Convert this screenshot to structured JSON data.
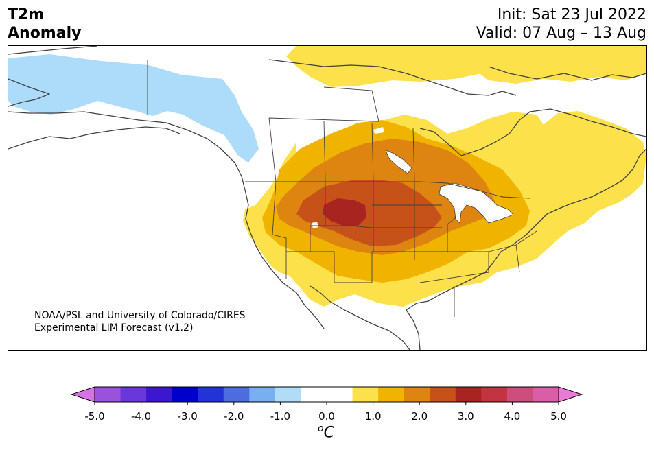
{
  "header": {
    "variable": "T2m",
    "variable_sub": "Anomaly",
    "init": "Init: Sat 23 Jul 2022",
    "valid": "Valid: 07 Aug – 13 Aug"
  },
  "credit": {
    "line1": "NOAA/PSL and University of Colorado/CIRES",
    "line2": "Experimental LIM Forecast (v1.2)"
  },
  "colorbar": {
    "unit_sup": "o",
    "unit": "C",
    "colors": [
      "#d572e6",
      "#9a52dc",
      "#6a37da",
      "#3b18cf",
      "#0000cc",
      "#2233d8",
      "#4c6ce0",
      "#77aff0",
      "#b0dcf8",
      "#ffffff",
      "#ffffff",
      "#fde14a",
      "#f0b300",
      "#de8511",
      "#c65219",
      "#a82421",
      "#c23441",
      "#cd4d7c",
      "#d95ea6",
      "#e97ad5"
    ],
    "ticks": [
      "-5.0",
      "-4.0",
      "-3.0",
      "-2.0",
      "-1.0",
      "0.0",
      "1.0",
      "2.0",
      "3.0",
      "4.0",
      "5.0"
    ]
  },
  "map": {
    "region": "North America",
    "anomaly_colors": {
      "cool": "#addcfb",
      "warm_1": "#fde14a",
      "warm_2": "#f0b300",
      "warm_3": "#de8511",
      "warm_4": "#c65219",
      "warm_5": "#a82421"
    }
  }
}
